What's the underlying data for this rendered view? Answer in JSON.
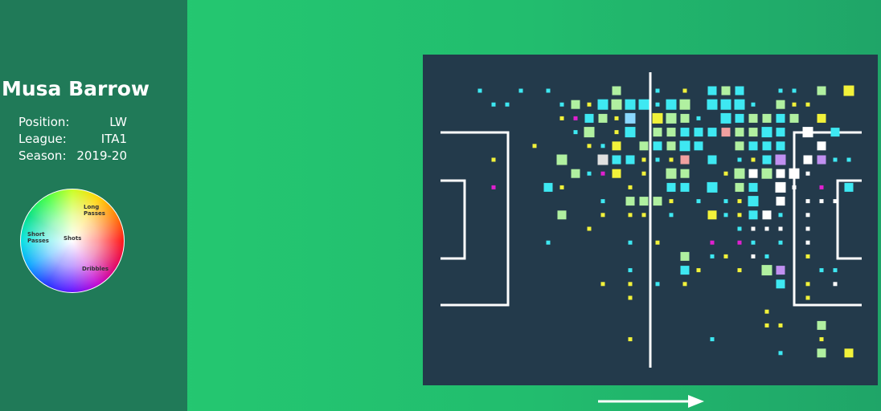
{
  "player": {
    "name": "Musa Barrow",
    "fields": [
      {
        "label": "Position:",
        "value": "LW"
      },
      {
        "label": "League:",
        "value": "ITA1"
      },
      {
        "label": "Season:",
        "value": "2019-20"
      }
    ]
  },
  "legend": {
    "long": "Long Passes",
    "short": "Short Passes",
    "shots": "Shots",
    "dribbles": "Dribbles"
  },
  "palette": {
    "c": "#3ee8f2",
    "y": "#f2f23a",
    "g": "#b0f0a0",
    "w": "#ffffff",
    "m": "#e020d0",
    "b": "#8ad8ff",
    "p": "#f0a0a0",
    "v": "#c090f0",
    "e": "#e0e0e0"
  },
  "tiles": [
    [
      0,
      0,
      5,
      "c"
    ],
    [
      3,
      0,
      5,
      "c"
    ],
    [
      5,
      0,
      5,
      "c"
    ],
    [
      10,
      0,
      11,
      "g"
    ],
    [
      13,
      0,
      5,
      "c"
    ],
    [
      15,
      0,
      5,
      "y"
    ],
    [
      17,
      0,
      11,
      "c"
    ],
    [
      18,
      0,
      11,
      "g"
    ],
    [
      19,
      0,
      11,
      "c"
    ],
    [
      22,
      0,
      5,
      "c"
    ],
    [
      23,
      0,
      5,
      "c"
    ],
    [
      25,
      0,
      11,
      "g"
    ],
    [
      27,
      0,
      13,
      "y"
    ],
    [
      1,
      1,
      5,
      "c"
    ],
    [
      2,
      1,
      5,
      "c"
    ],
    [
      6,
      1,
      5,
      "c"
    ],
    [
      7,
      1,
      11,
      "g"
    ],
    [
      8,
      1,
      5,
      "y"
    ],
    [
      9,
      1,
      13,
      "c"
    ],
    [
      10,
      1,
      13,
      "g"
    ],
    [
      11,
      1,
      13,
      "c"
    ],
    [
      12,
      1,
      13,
      "c"
    ],
    [
      13,
      1,
      5,
      "c"
    ],
    [
      14,
      1,
      13,
      "c"
    ],
    [
      15,
      1,
      13,
      "g"
    ],
    [
      17,
      1,
      13,
      "c"
    ],
    [
      18,
      1,
      13,
      "c"
    ],
    [
      19,
      1,
      13,
      "c"
    ],
    [
      20,
      1,
      5,
      "c"
    ],
    [
      22,
      1,
      11,
      "g"
    ],
    [
      23,
      1,
      5,
      "y"
    ],
    [
      24,
      1,
      5,
      "y"
    ],
    [
      6,
      2,
      5,
      "y"
    ],
    [
      7,
      2,
      5,
      "m"
    ],
    [
      8,
      2,
      11,
      "c"
    ],
    [
      9,
      2,
      11,
      "g"
    ],
    [
      10,
      2,
      5,
      "y"
    ],
    [
      11,
      2,
      13,
      "b"
    ],
    [
      13,
      2,
      13,
      "y"
    ],
    [
      14,
      2,
      13,
      "g"
    ],
    [
      15,
      2,
      11,
      "g"
    ],
    [
      16,
      2,
      5,
      "c"
    ],
    [
      18,
      2,
      13,
      "c"
    ],
    [
      19,
      2,
      11,
      "c"
    ],
    [
      20,
      2,
      11,
      "g"
    ],
    [
      21,
      2,
      11,
      "g"
    ],
    [
      22,
      2,
      11,
      "c"
    ],
    [
      23,
      2,
      11,
      "g"
    ],
    [
      25,
      2,
      11,
      "y"
    ],
    [
      7,
      3,
      5,
      "c"
    ],
    [
      8,
      3,
      13,
      "g"
    ],
    [
      10,
      3,
      5,
      "y"
    ],
    [
      11,
      3,
      13,
      "c"
    ],
    [
      13,
      3,
      11,
      "g"
    ],
    [
      14,
      3,
      11,
      "g"
    ],
    [
      15,
      3,
      11,
      "c"
    ],
    [
      16,
      3,
      11,
      "c"
    ],
    [
      17,
      3,
      11,
      "c"
    ],
    [
      18,
      3,
      11,
      "p"
    ],
    [
      19,
      3,
      11,
      "g"
    ],
    [
      20,
      3,
      11,
      "g"
    ],
    [
      21,
      3,
      13,
      "c"
    ],
    [
      22,
      3,
      11,
      "c"
    ],
    [
      24,
      3,
      13,
      "w"
    ],
    [
      26,
      3,
      11,
      "c"
    ],
    [
      4,
      4,
      5,
      "y"
    ],
    [
      8,
      4,
      5,
      "y"
    ],
    [
      9,
      4,
      5,
      "c"
    ],
    [
      10,
      4,
      11,
      "y"
    ],
    [
      12,
      4,
      11,
      "g"
    ],
    [
      13,
      4,
      11,
      "c"
    ],
    [
      14,
      4,
      11,
      "g"
    ],
    [
      15,
      4,
      13,
      "c"
    ],
    [
      16,
      4,
      11,
      "c"
    ],
    [
      19,
      4,
      11,
      "g"
    ],
    [
      20,
      4,
      11,
      "c"
    ],
    [
      21,
      4,
      11,
      "c"
    ],
    [
      22,
      4,
      11,
      "c"
    ],
    [
      25,
      4,
      11,
      "w"
    ],
    [
      1,
      5,
      5,
      "y"
    ],
    [
      6,
      5,
      13,
      "g"
    ],
    [
      9,
      5,
      13,
      "e"
    ],
    [
      10,
      5,
      11,
      "c"
    ],
    [
      11,
      5,
      11,
      "c"
    ],
    [
      12,
      5,
      5,
      "y"
    ],
    [
      13,
      5,
      5,
      "c"
    ],
    [
      14,
      5,
      5,
      "y"
    ],
    [
      15,
      5,
      11,
      "p"
    ],
    [
      17,
      5,
      11,
      "c"
    ],
    [
      19,
      5,
      5,
      "c"
    ],
    [
      20,
      5,
      5,
      "y"
    ],
    [
      21,
      5,
      11,
      "c"
    ],
    [
      22,
      5,
      13,
      "v"
    ],
    [
      24,
      5,
      11,
      "w"
    ],
    [
      25,
      5,
      11,
      "v"
    ],
    [
      26,
      5,
      5,
      "c"
    ],
    [
      27,
      5,
      5,
      "c"
    ],
    [
      7,
      6,
      11,
      "g"
    ],
    [
      8,
      6,
      5,
      "c"
    ],
    [
      9,
      6,
      5,
      "m"
    ],
    [
      10,
      6,
      11,
      "y"
    ],
    [
      12,
      6,
      5,
      "y"
    ],
    [
      14,
      6,
      13,
      "g"
    ],
    [
      15,
      6,
      11,
      "g"
    ],
    [
      18,
      6,
      5,
      "y"
    ],
    [
      19,
      6,
      13,
      "g"
    ],
    [
      20,
      6,
      11,
      "w"
    ],
    [
      21,
      6,
      13,
      "g"
    ],
    [
      22,
      6,
      11,
      "w"
    ],
    [
      23,
      6,
      13,
      "w"
    ],
    [
      24,
      6,
      5,
      "w"
    ],
    [
      1,
      7,
      5,
      "m"
    ],
    [
      5,
      7,
      11,
      "c"
    ],
    [
      6,
      7,
      5,
      "y"
    ],
    [
      11,
      7,
      5,
      "y"
    ],
    [
      14,
      7,
      11,
      "c"
    ],
    [
      15,
      7,
      11,
      "c"
    ],
    [
      17,
      7,
      13,
      "c"
    ],
    [
      19,
      7,
      11,
      "g"
    ],
    [
      20,
      7,
      11,
      "c"
    ],
    [
      22,
      7,
      13,
      "w"
    ],
    [
      23,
      7,
      5,
      "w"
    ],
    [
      25,
      7,
      5,
      "m"
    ],
    [
      27,
      7,
      11,
      "c"
    ],
    [
      9,
      8,
      5,
      "c"
    ],
    [
      11,
      8,
      11,
      "g"
    ],
    [
      12,
      8,
      11,
      "g"
    ],
    [
      13,
      8,
      11,
      "g"
    ],
    [
      14,
      8,
      5,
      "y"
    ],
    [
      16,
      8,
      5,
      "c"
    ],
    [
      18,
      8,
      5,
      "c"
    ],
    [
      19,
      8,
      5,
      "y"
    ],
    [
      20,
      8,
      13,
      "c"
    ],
    [
      22,
      8,
      11,
      "w"
    ],
    [
      24,
      8,
      5,
      "w"
    ],
    [
      25,
      8,
      5,
      "w"
    ],
    [
      26,
      8,
      5,
      "w"
    ],
    [
      6,
      9,
      11,
      "g"
    ],
    [
      9,
      9,
      5,
      "y"
    ],
    [
      11,
      9,
      5,
      "y"
    ],
    [
      12,
      9,
      5,
      "y"
    ],
    [
      14,
      9,
      5,
      "c"
    ],
    [
      17,
      9,
      11,
      "y"
    ],
    [
      18,
      9,
      5,
      "c"
    ],
    [
      19,
      9,
      5,
      "y"
    ],
    [
      20,
      9,
      11,
      "c"
    ],
    [
      21,
      9,
      11,
      "w"
    ],
    [
      22,
      9,
      5,
      "c"
    ],
    [
      24,
      9,
      5,
      "w"
    ],
    [
      8,
      10,
      5,
      "y"
    ],
    [
      19,
      10,
      5,
      "c"
    ],
    [
      20,
      10,
      5,
      "w"
    ],
    [
      21,
      10,
      5,
      "w"
    ],
    [
      22,
      10,
      5,
      "w"
    ],
    [
      24,
      10,
      5,
      "w"
    ],
    [
      5,
      11,
      5,
      "c"
    ],
    [
      11,
      11,
      5,
      "c"
    ],
    [
      13,
      11,
      5,
      "y"
    ],
    [
      17,
      11,
      5,
      "m"
    ],
    [
      19,
      11,
      5,
      "m"
    ],
    [
      20,
      11,
      5,
      "c"
    ],
    [
      22,
      11,
      5,
      "c"
    ],
    [
      24,
      11,
      5,
      "w"
    ],
    [
      15,
      12,
      11,
      "g"
    ],
    [
      17,
      12,
      5,
      "c"
    ],
    [
      18,
      12,
      5,
      "y"
    ],
    [
      20,
      12,
      5,
      "w"
    ],
    [
      21,
      12,
      5,
      "c"
    ],
    [
      24,
      12,
      5,
      "y"
    ],
    [
      11,
      13,
      5,
      "c"
    ],
    [
      15,
      13,
      11,
      "c"
    ],
    [
      16,
      13,
      5,
      "y"
    ],
    [
      19,
      13,
      5,
      "y"
    ],
    [
      21,
      13,
      13,
      "g"
    ],
    [
      22,
      13,
      11,
      "v"
    ],
    [
      25,
      13,
      5,
      "c"
    ],
    [
      26,
      13,
      5,
      "c"
    ],
    [
      9,
      14,
      5,
      "y"
    ],
    [
      11,
      14,
      5,
      "y"
    ],
    [
      13,
      14,
      5,
      "c"
    ],
    [
      15,
      14,
      5,
      "y"
    ],
    [
      22,
      14,
      11,
      "c"
    ],
    [
      24,
      14,
      5,
      "y"
    ],
    [
      26,
      14,
      5,
      "w"
    ],
    [
      11,
      15,
      5,
      "y"
    ],
    [
      24,
      15,
      5,
      "y"
    ],
    [
      21,
      16,
      5,
      "y"
    ],
    [
      21,
      17,
      5,
      "y"
    ],
    [
      22,
      17,
      5,
      "y"
    ],
    [
      25,
      17,
      11,
      "g"
    ],
    [
      11,
      18,
      5,
      "y"
    ],
    [
      17,
      18,
      5,
      "c"
    ],
    [
      25,
      18,
      5,
      "y"
    ],
    [
      22,
      19,
      5,
      "c"
    ],
    [
      25,
      19,
      11,
      "g"
    ],
    [
      27,
      19,
      11,
      "y"
    ]
  ]
}
